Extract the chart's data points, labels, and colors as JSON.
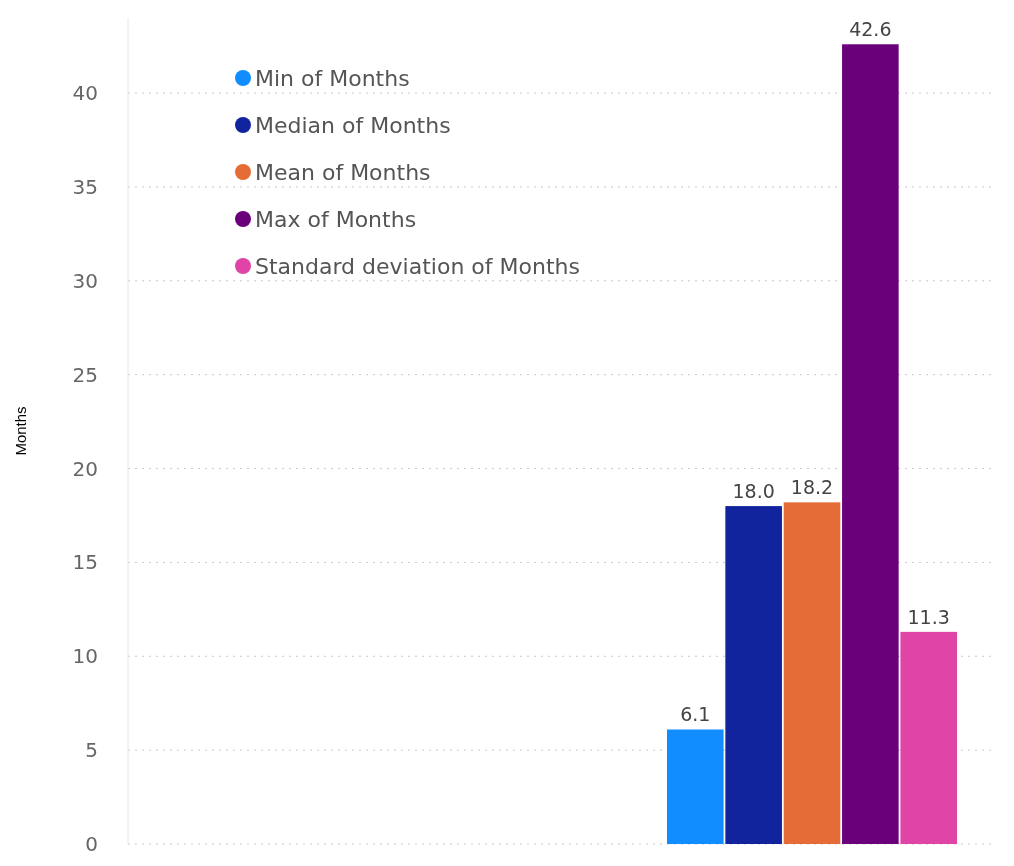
{
  "chart_data": {
    "type": "bar",
    "ylabel": "Months",
    "categories": [
      null
    ],
    "series": [
      {
        "name": "Min of Months",
        "color": "#118dff",
        "values": [
          6.1
        ],
        "value_labels": [
          "6.1"
        ]
      },
      {
        "name": "Median of Months",
        "color": "#12239e",
        "values": [
          18.0
        ],
        "value_labels": [
          "18.0"
        ]
      },
      {
        "name": "Mean of Months",
        "color": "#e66c37",
        "values": [
          18.2
        ],
        "value_labels": [
          "18.2"
        ]
      },
      {
        "name": "Max of Months",
        "color": "#6b007b",
        "values": [
          42.6
        ],
        "value_labels": [
          "42.6"
        ]
      },
      {
        "name": "Standard deviation of Months",
        "color": "#e044a7",
        "values": [
          11.3
        ],
        "value_labels": [
          "11.3"
        ]
      }
    ],
    "ylim": [
      0,
      44
    ],
    "yticks": [
      0,
      5,
      10,
      15,
      20,
      25,
      30,
      35,
      40
    ],
    "grid": "y",
    "legend": "top left"
  }
}
